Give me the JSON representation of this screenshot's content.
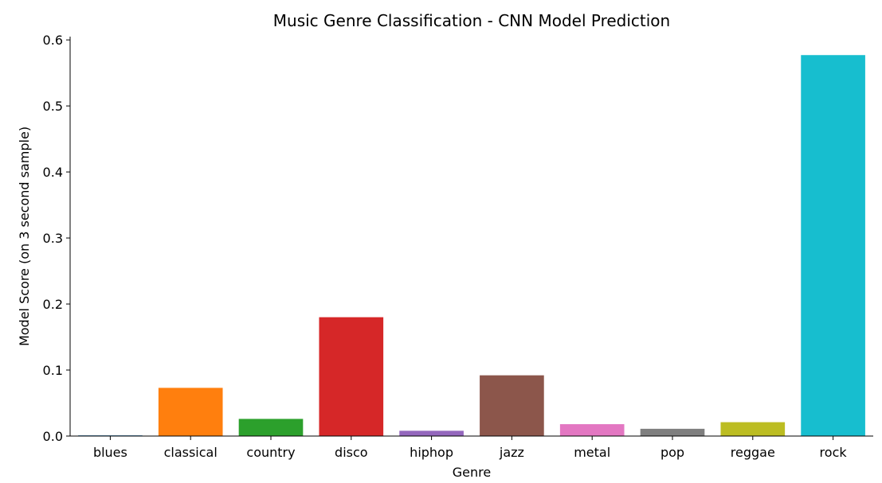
{
  "chart_data": {
    "type": "bar",
    "title": "Music Genre Classification - CNN Model Prediction",
    "xlabel": "Genre",
    "ylabel": "Model Score (on 3 second sample)",
    "categories": [
      "blues",
      "classical",
      "country",
      "disco",
      "hiphop",
      "jazz",
      "metal",
      "pop",
      "reggae",
      "rock"
    ],
    "values": [
      0.001,
      0.073,
      0.026,
      0.18,
      0.008,
      0.092,
      0.018,
      0.011,
      0.021,
      0.577
    ],
    "colors": [
      "#1f77b4",
      "#ff7f0e",
      "#2ca02c",
      "#d62728",
      "#9467bd",
      "#8c564b",
      "#e377c2",
      "#7f7f7f",
      "#bcbd22",
      "#17becf"
    ],
    "ylim": [
      0,
      0.605
    ],
    "yticks": [
      "0.0",
      "0.1",
      "0.2",
      "0.3",
      "0.4",
      "0.5",
      "0.6"
    ],
    "ytick_values": [
      0,
      0.1,
      0.2,
      0.3,
      0.4,
      0.5,
      0.6
    ],
    "grid": false,
    "legend": "none"
  }
}
